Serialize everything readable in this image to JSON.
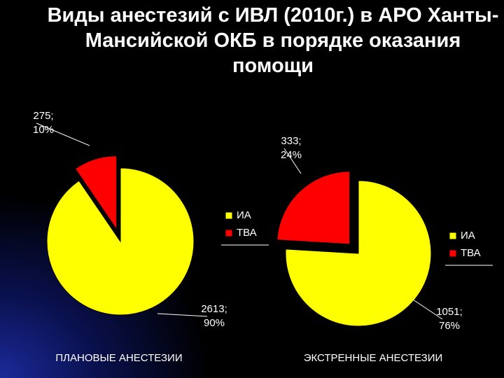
{
  "title": "Виды анестезий с ИВЛ (2010г.) в АРО Ханты-Мансийской ОКБ в порядке оказания помощи",
  "chart_data": [
    {
      "type": "pie",
      "title": "ПЛАНОВЫЕ АНЕСТЕЗИИ",
      "categories": [
        "ИА",
        "ТВА"
      ],
      "values": [
        2613,
        275
      ],
      "value_labels": [
        "2613; 90%",
        "275; 10%"
      ],
      "colors": [
        "#ffff00",
        "#ff0000"
      ]
    },
    {
      "type": "pie",
      "title": "ЭКСТРЕННЫЕ АНЕСТЕЗИИ",
      "categories": [
        "ИА",
        "ТВА"
      ],
      "values": [
        1051,
        333
      ],
      "value_labels": [
        "1051; 76%",
        "333; 24%"
      ],
      "colors": [
        "#ffff00",
        "#ff0000"
      ]
    }
  ]
}
